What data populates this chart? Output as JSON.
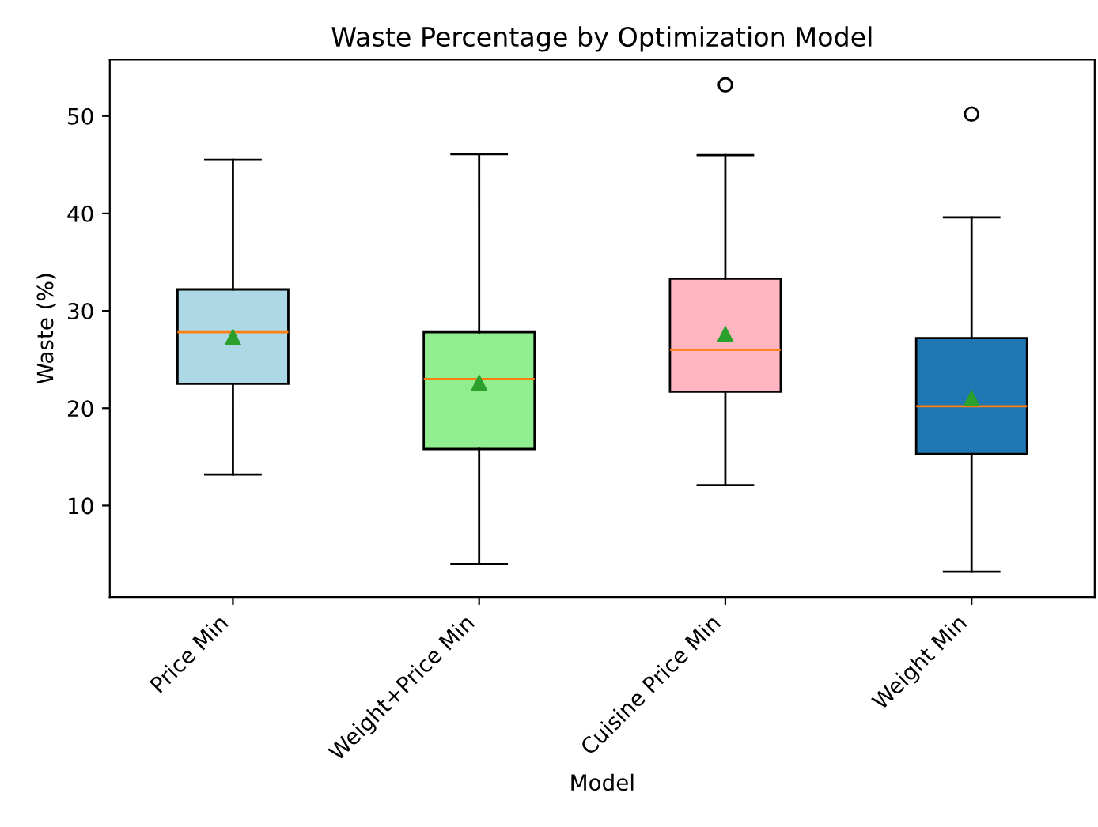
{
  "chart_data": {
    "type": "box",
    "title": "Waste Percentage by Optimization Model",
    "xlabel": "Model",
    "ylabel": "Waste (%)",
    "categories": [
      "Price Min",
      "Weight+Price Min",
      "Cuisine Price Min",
      "Weight Min"
    ],
    "colors": [
      "#add8e6",
      "#90ee90",
      "#ffb6c1",
      "#1f77b4"
    ],
    "boxes": [
      {
        "low": 13.2,
        "q1": 22.5,
        "median": 27.8,
        "q3": 32.2,
        "high": 45.5,
        "mean": 27.3
      },
      {
        "low": 4.0,
        "q1": 15.8,
        "median": 23.0,
        "q3": 27.8,
        "high": 46.1,
        "mean": 22.6
      },
      {
        "low": 12.1,
        "q1": 21.7,
        "median": 26.0,
        "q3": 33.3,
        "high": 46.0,
        "mean": 27.6,
        "outliers": [
          53.2
        ]
      },
      {
        "low": 3.2,
        "q1": 15.3,
        "median": 20.2,
        "q3": 27.2,
        "high": 39.6,
        "mean": 21.0,
        "outliers": [
          50.2
        ]
      }
    ],
    "ylim": [
      0.6,
      55.8
    ],
    "yticks": [
      10,
      20,
      30,
      40,
      50
    ],
    "grid": false
  }
}
